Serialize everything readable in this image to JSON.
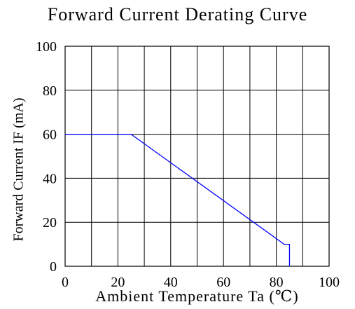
{
  "chart_data": {
    "type": "line",
    "title": "Forward Current Derating Curve",
    "xlabel": "Ambient Temperature Ta (℃)",
    "ylabel": "Forward Current IF (mA)",
    "xlim": [
      0,
      100
    ],
    "ylim": [
      0,
      100
    ],
    "x_ticks": [
      "0",
      "20",
      "40",
      "60",
      "80",
      "100"
    ],
    "y_ticks": [
      "0",
      "20",
      "40",
      "60",
      "80",
      "100"
    ],
    "grid": true,
    "grid_step_x": 10,
    "grid_step_y": 20,
    "line_color": "#0000ff",
    "series": [
      {
        "x": [
          0,
          25,
          83,
          85,
          85
        ],
        "y": [
          60,
          60,
          10,
          10,
          0
        ]
      }
    ]
  }
}
